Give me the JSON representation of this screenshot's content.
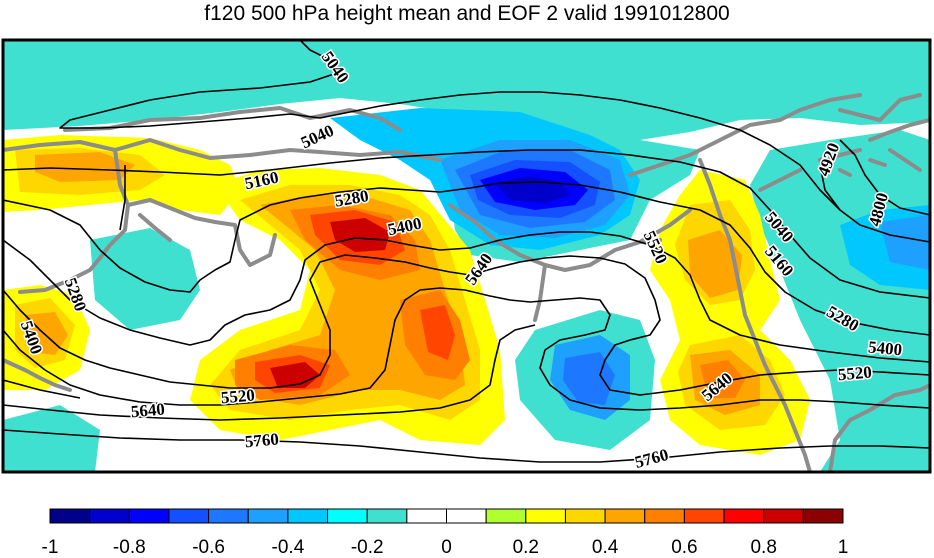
{
  "title": "f120 500 hPa height mean and EOF 2 valid 1991012800",
  "colorbar": {
    "colors": [
      "#00008b",
      "#0000cd",
      "#0000ff",
      "#1450ff",
      "#1e78ff",
      "#1ea0ff",
      "#00c8ff",
      "#00ffff",
      "#40e0d0",
      "#ffffff",
      "#ffffff",
      "#b0ff2f",
      "#ffff00",
      "#ffd700",
      "#ffa500",
      "#ff7f00",
      "#ff4500",
      "#ff0000",
      "#cd0000",
      "#8b0000"
    ],
    "tick_labels": [
      "-1",
      "-0.8",
      "-0.6",
      "-0.4",
      "-0.2",
      "0",
      "0.2",
      "0.4",
      "0.6",
      "0.8",
      "1"
    ]
  },
  "contour_labels": [
    "5040",
    "5040",
    "5160",
    "5280",
    "5400",
    "5640",
    "5520",
    "4920",
    "4800",
    "5040",
    "5160",
    "5280",
    "5400",
    "5520",
    "5280",
    "5400",
    "5520",
    "5640",
    "5640",
    "5760",
    "5760"
  ],
  "colors": {
    "coastline": "#8c8c8c",
    "contour": "#000000",
    "frame": "#000000"
  }
}
